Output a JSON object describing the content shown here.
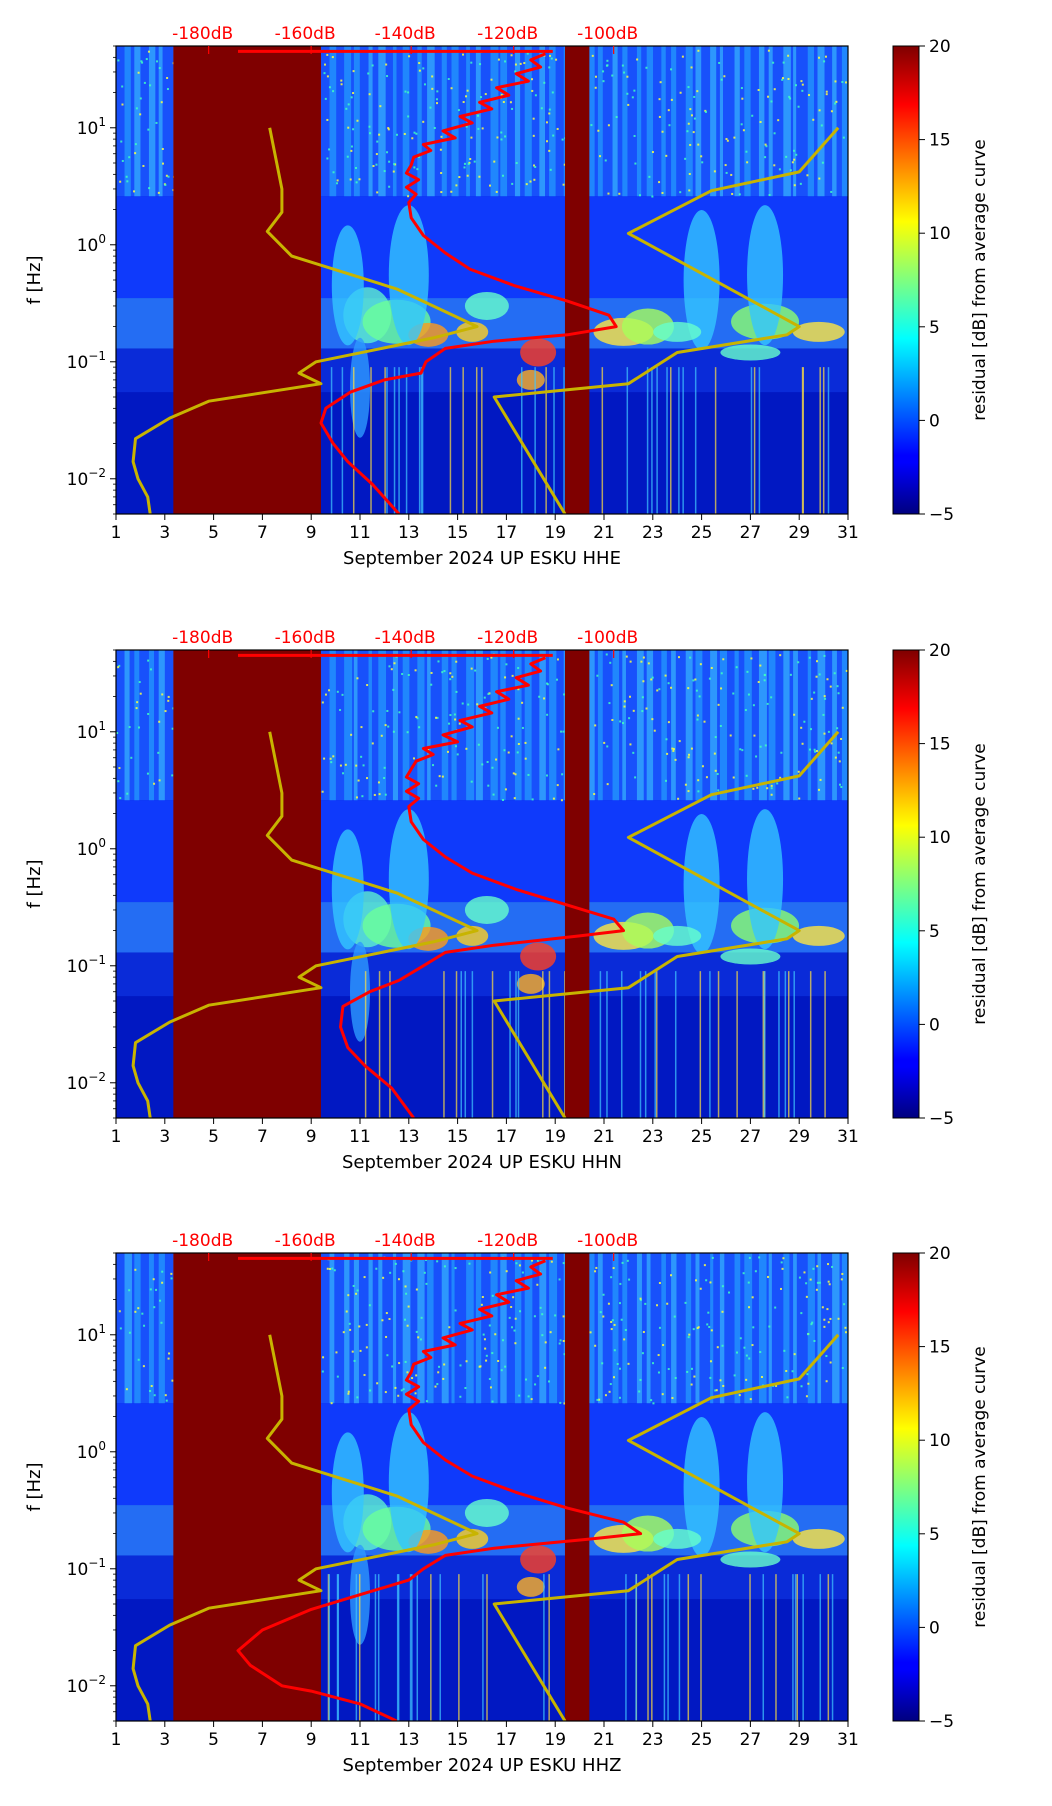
{
  "chart_data": [
    {
      "type": "heatmap",
      "subtype": "spectrogram-with-noise-curves",
      "xlabel": "September 2024 UP ESKU  HHE",
      "ylabel": "f [Hz]",
      "x_ticks": [
        "1",
        "3",
        "5",
        "7",
        "9",
        "11",
        "13",
        "15",
        "17",
        "19",
        "21",
        "23",
        "25",
        "27",
        "29",
        "31"
      ],
      "xlim": [
        1,
        31
      ],
      "y_scale": "log",
      "ylim": [
        0.005,
        50
      ],
      "y_ticks": [
        "10^-2",
        "10^-1",
        "10^0",
        "10^1"
      ],
      "top_axis_ticks": [
        "-180dB",
        "-160dB",
        "-140dB",
        "-120dB",
        "-100dB"
      ],
      "top_axis_color": "#ff0000",
      "colorbar": {
        "label": "residual [dB] from average curve",
        "min": -5,
        "max": 20,
        "ticks": [
          "−5",
          "0",
          "5",
          "10",
          "15",
          "20"
        ],
        "colormap": "jet"
      },
      "data_gaps": [
        [
          3.35,
          9.4
        ],
        [
          19.4,
          20.4
        ]
      ],
      "red_curve": {
        "name": "",
        "color": "#ff0000",
        "points": [
          [
            12.6,
            0.005
          ],
          [
            11.5,
            0.009
          ],
          [
            10.5,
            0.014
          ],
          [
            9.9,
            0.02
          ],
          [
            9.4,
            0.03
          ],
          [
            9.6,
            0.04
          ],
          [
            10.6,
            0.055
          ],
          [
            12.0,
            0.07
          ],
          [
            13.5,
            0.08
          ],
          [
            13.7,
            0.1
          ],
          [
            14.5,
            0.13
          ],
          [
            16.5,
            0.15
          ],
          [
            19.5,
            0.17
          ],
          [
            21.5,
            0.2
          ],
          [
            21.2,
            0.25
          ],
          [
            19.5,
            0.33
          ],
          [
            17.3,
            0.45
          ],
          [
            15.5,
            0.62
          ],
          [
            14.5,
            0.85
          ],
          [
            13.6,
            1.2
          ],
          [
            13.1,
            1.7
          ],
          [
            13.0,
            2.3
          ],
          [
            13.3,
            2.7
          ],
          [
            12.9,
            3.1
          ],
          [
            13.4,
            3.6
          ],
          [
            12.9,
            4.1
          ],
          [
            13.1,
            4.8
          ],
          [
            13.2,
            5.6
          ],
          [
            13.9,
            6.4
          ],
          [
            13.6,
            7.2
          ],
          [
            14.9,
            8.2
          ],
          [
            14.4,
            9.4
          ],
          [
            15.6,
            11
          ],
          [
            15.1,
            12.5
          ],
          [
            16.4,
            14.5
          ],
          [
            15.9,
            16.5
          ],
          [
            17.1,
            19
          ],
          [
            16.6,
            22
          ],
          [
            17.9,
            25
          ],
          [
            17.4,
            29
          ],
          [
            18.4,
            33
          ],
          [
            18.0,
            38
          ],
          [
            18.6,
            43
          ]
        ]
      },
      "yellow_curve": {
        "name": "",
        "color": "#c8b400",
        "points": [
          [
            2.4,
            0.005
          ],
          [
            2.3,
            0.007
          ],
          [
            1.9,
            0.01
          ],
          [
            1.7,
            0.014
          ],
          [
            1.8,
            0.022
          ],
          [
            3.2,
            0.033
          ],
          [
            4.8,
            0.046
          ],
          [
            9.4,
            0.065
          ],
          [
            8.5,
            0.08
          ],
          [
            9.2,
            0.1
          ],
          [
            14.0,
            0.16
          ],
          [
            15.8,
            0.2
          ],
          [
            14.0,
            0.3
          ],
          [
            12.5,
            0.42
          ],
          [
            8.2,
            0.8
          ],
          [
            7.2,
            1.3
          ],
          [
            7.8,
            1.9
          ],
          [
            7.8,
            3.0
          ],
          [
            7.3,
            10
          ]
        ]
      },
      "yellow_curve_2": {
        "name": "",
        "color": "#c8b400",
        "points": [
          [
            19.4,
            0.005
          ],
          [
            16.5,
            0.05
          ],
          [
            22.0,
            0.065
          ],
          [
            24.0,
            0.12
          ],
          [
            28.5,
            0.17
          ],
          [
            29.0,
            0.2
          ],
          [
            27.2,
            0.32
          ],
          [
            22.0,
            1.25
          ],
          [
            25.4,
            2.9
          ],
          [
            29.0,
            4.2
          ],
          [
            30.6,
            10
          ]
        ]
      }
    },
    {
      "type": "heatmap",
      "subtype": "spectrogram-with-noise-curves",
      "xlabel": "September 2024 UP ESKU  HHN",
      "ylabel": "f [Hz]",
      "x_ticks": [
        "1",
        "3",
        "5",
        "7",
        "9",
        "11",
        "13",
        "15",
        "17",
        "19",
        "21",
        "23",
        "25",
        "27",
        "29",
        "31"
      ],
      "xlim": [
        1,
        31
      ],
      "y_scale": "log",
      "ylim": [
        0.005,
        50
      ],
      "y_ticks": [
        "10^-2",
        "10^-1",
        "10^0",
        "10^1"
      ],
      "top_axis_ticks": [
        "-180dB",
        "-160dB",
        "-140dB",
        "-120dB",
        "-100dB"
      ],
      "top_axis_color": "#ff0000",
      "colorbar": {
        "label": "residual [dB] from average curve",
        "min": -5,
        "max": 20,
        "ticks": [
          "−5",
          "0",
          "5",
          "10",
          "15",
          "20"
        ],
        "colormap": "jet"
      },
      "data_gaps": [
        [
          3.35,
          9.4
        ],
        [
          19.4,
          20.4
        ]
      ],
      "red_curve": {
        "name": "",
        "color": "#ff0000",
        "points": [
          [
            13.2,
            0.005
          ],
          [
            12.3,
            0.009
          ],
          [
            11.2,
            0.014
          ],
          [
            10.5,
            0.02
          ],
          [
            10.2,
            0.03
          ],
          [
            10.3,
            0.045
          ],
          [
            11.4,
            0.06
          ],
          [
            12.6,
            0.075
          ],
          [
            13.6,
            0.1
          ],
          [
            14.5,
            0.13
          ],
          [
            16.5,
            0.15
          ],
          [
            20.0,
            0.18
          ],
          [
            21.8,
            0.2
          ],
          [
            21.4,
            0.25
          ],
          [
            19.5,
            0.33
          ],
          [
            17.4,
            0.45
          ],
          [
            15.6,
            0.62
          ],
          [
            14.5,
            0.85
          ],
          [
            13.6,
            1.2
          ],
          [
            13.1,
            1.7
          ],
          [
            13.0,
            2.3
          ],
          [
            13.4,
            2.7
          ],
          [
            12.9,
            3.1
          ],
          [
            13.4,
            3.6
          ],
          [
            12.9,
            4.1
          ],
          [
            13.1,
            4.8
          ],
          [
            13.3,
            5.6
          ],
          [
            14.0,
            6.4
          ],
          [
            13.6,
            7.2
          ],
          [
            15.0,
            8.2
          ],
          [
            14.4,
            9.4
          ],
          [
            15.6,
            11
          ],
          [
            15.1,
            12.5
          ],
          [
            16.4,
            14.5
          ],
          [
            15.9,
            16.5
          ],
          [
            17.1,
            19
          ],
          [
            16.6,
            22
          ],
          [
            17.9,
            25
          ],
          [
            17.4,
            29
          ],
          [
            18.4,
            33
          ],
          [
            18.0,
            38
          ],
          [
            18.6,
            43
          ]
        ]
      },
      "yellow_curve": {
        "name": "",
        "color": "#c8b400",
        "points": [
          [
            2.4,
            0.005
          ],
          [
            2.3,
            0.007
          ],
          [
            1.9,
            0.01
          ],
          [
            1.7,
            0.014
          ],
          [
            1.8,
            0.022
          ],
          [
            3.2,
            0.033
          ],
          [
            4.8,
            0.046
          ],
          [
            9.4,
            0.065
          ],
          [
            8.5,
            0.08
          ],
          [
            9.2,
            0.1
          ],
          [
            14.0,
            0.16
          ],
          [
            15.8,
            0.2
          ],
          [
            14.0,
            0.3
          ],
          [
            12.5,
            0.42
          ],
          [
            8.2,
            0.8
          ],
          [
            7.2,
            1.3
          ],
          [
            7.8,
            1.9
          ],
          [
            7.8,
            3.0
          ],
          [
            7.3,
            10
          ]
        ]
      },
      "yellow_curve_2": {
        "name": "",
        "color": "#c8b400",
        "points": [
          [
            19.4,
            0.005
          ],
          [
            16.5,
            0.05
          ],
          [
            22.0,
            0.065
          ],
          [
            24.0,
            0.12
          ],
          [
            28.5,
            0.17
          ],
          [
            29.0,
            0.2
          ],
          [
            27.2,
            0.32
          ],
          [
            22.0,
            1.25
          ],
          [
            25.4,
            2.9
          ],
          [
            29.0,
            4.2
          ],
          [
            30.6,
            10
          ]
        ]
      }
    },
    {
      "type": "heatmap",
      "subtype": "spectrogram-with-noise-curves",
      "xlabel": "September 2024 UP ESKU  HHZ",
      "ylabel": "f [Hz]",
      "x_ticks": [
        "1",
        "3",
        "5",
        "7",
        "9",
        "11",
        "13",
        "15",
        "17",
        "19",
        "21",
        "23",
        "25",
        "27",
        "29",
        "31"
      ],
      "xlim": [
        1,
        31
      ],
      "y_scale": "log",
      "ylim": [
        0.005,
        50
      ],
      "y_ticks": [
        "10^-2",
        "10^-1",
        "10^0",
        "10^1"
      ],
      "top_axis_ticks": [
        "-180dB",
        "-160dB",
        "-140dB",
        "-120dB",
        "-100dB"
      ],
      "top_axis_color": "#ff0000",
      "colorbar": {
        "label": "residual [dB] from average curve",
        "min": -5,
        "max": 20,
        "ticks": [
          "−5",
          "0",
          "5",
          "10",
          "15",
          "20"
        ],
        "colormap": "jet"
      },
      "data_gaps": [
        [
          3.35,
          9.4
        ],
        [
          19.4,
          20.4
        ]
      ],
      "red_curve": {
        "name": "",
        "color": "#ff0000",
        "points": [
          [
            12.5,
            0.005
          ],
          [
            11.0,
            0.007
          ],
          [
            9.0,
            0.009
          ],
          [
            7.8,
            0.01
          ],
          [
            6.5,
            0.015
          ],
          [
            6.0,
            0.02
          ],
          [
            7.0,
            0.03
          ],
          [
            9.0,
            0.045
          ],
          [
            11.0,
            0.06
          ],
          [
            13.0,
            0.08
          ],
          [
            13.6,
            0.1
          ],
          [
            14.5,
            0.13
          ],
          [
            16.5,
            0.15
          ],
          [
            20.5,
            0.18
          ],
          [
            22.5,
            0.2
          ],
          [
            21.8,
            0.25
          ],
          [
            19.5,
            0.33
          ],
          [
            17.4,
            0.45
          ],
          [
            15.6,
            0.62
          ],
          [
            14.5,
            0.85
          ],
          [
            13.6,
            1.2
          ],
          [
            13.1,
            1.7
          ],
          [
            13.0,
            2.3
          ],
          [
            13.4,
            2.7
          ],
          [
            12.9,
            3.1
          ],
          [
            13.4,
            3.6
          ],
          [
            12.9,
            4.1
          ],
          [
            13.1,
            4.8
          ],
          [
            13.2,
            5.6
          ],
          [
            13.9,
            6.4
          ],
          [
            13.6,
            7.2
          ],
          [
            14.9,
            8.2
          ],
          [
            14.4,
            9.4
          ],
          [
            15.6,
            11
          ],
          [
            15.1,
            12.5
          ],
          [
            16.4,
            14.5
          ],
          [
            15.9,
            16.5
          ],
          [
            17.1,
            19
          ],
          [
            16.6,
            22
          ],
          [
            17.9,
            25
          ],
          [
            17.4,
            29
          ],
          [
            18.4,
            33
          ],
          [
            18.0,
            38
          ],
          [
            18.6,
            43
          ]
        ]
      },
      "yellow_curve": {
        "name": "",
        "color": "#c8b400",
        "points": [
          [
            2.4,
            0.005
          ],
          [
            2.3,
            0.007
          ],
          [
            1.9,
            0.01
          ],
          [
            1.7,
            0.014
          ],
          [
            1.8,
            0.022
          ],
          [
            3.2,
            0.033
          ],
          [
            4.8,
            0.046
          ],
          [
            9.4,
            0.065
          ],
          [
            8.5,
            0.08
          ],
          [
            9.2,
            0.1
          ],
          [
            14.0,
            0.16
          ],
          [
            15.8,
            0.2
          ],
          [
            14.0,
            0.3
          ],
          [
            12.5,
            0.42
          ],
          [
            8.2,
            0.8
          ],
          [
            7.2,
            1.3
          ],
          [
            7.8,
            1.9
          ],
          [
            7.8,
            3.0
          ],
          [
            7.3,
            10
          ]
        ]
      },
      "yellow_curve_2": {
        "name": "",
        "color": "#c8b400",
        "points": [
          [
            19.4,
            0.005
          ],
          [
            16.5,
            0.05
          ],
          [
            22.0,
            0.065
          ],
          [
            24.0,
            0.12
          ],
          [
            28.5,
            0.17
          ],
          [
            29.0,
            0.2
          ],
          [
            27.2,
            0.32
          ],
          [
            22.0,
            1.25
          ],
          [
            25.4,
            2.9
          ],
          [
            29.0,
            4.2
          ],
          [
            30.6,
            10
          ]
        ]
      }
    }
  ]
}
